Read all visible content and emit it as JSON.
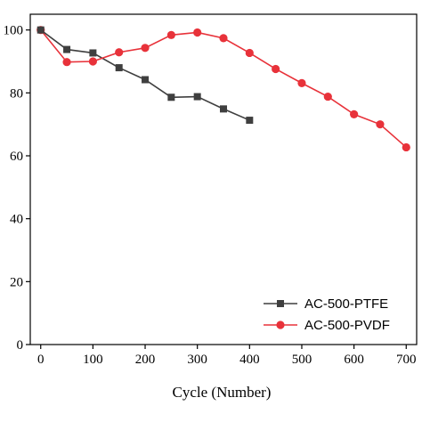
{
  "chart_data": {
    "type": "line",
    "title": "",
    "xlabel": "Cycle (Number)",
    "ylabel": "",
    "xlim": [
      -20,
      720
    ],
    "ylim": [
      0,
      105
    ],
    "x_ticks": [
      0,
      100,
      200,
      300,
      400,
      500,
      600,
      700
    ],
    "y_ticks": [
      0,
      20,
      40,
      60,
      80,
      100
    ],
    "x_tick_labels": [
      "0",
      "100",
      "200",
      "300",
      "400",
      "500",
      "600",
      "700"
    ],
    "y_tick_labels": [
      "0",
      "20",
      "40",
      "60",
      "80",
      "100"
    ],
    "grid": false,
    "legend_position": "bottom-right",
    "series": [
      {
        "name": "AC-500-PTFE",
        "color": "#3f3f3f",
        "marker": "square",
        "x": [
          0,
          50,
          100,
          150,
          200,
          250,
          300,
          350,
          400
        ],
        "y": [
          100,
          93.8,
          92.7,
          88.0,
          84.2,
          78.6,
          78.8,
          74.9,
          71.3
        ]
      },
      {
        "name": "AC-500-PVDF",
        "color": "#e8323a",
        "marker": "circle",
        "x": [
          0,
          50,
          100,
          150,
          200,
          250,
          300,
          350,
          400,
          450,
          500,
          550,
          600,
          650,
          700
        ],
        "y": [
          100,
          89.8,
          90.0,
          92.9,
          94.3,
          98.4,
          99.2,
          97.4,
          92.7,
          87.6,
          83.1,
          78.8,
          73.2,
          70.0,
          62.7
        ]
      }
    ]
  }
}
